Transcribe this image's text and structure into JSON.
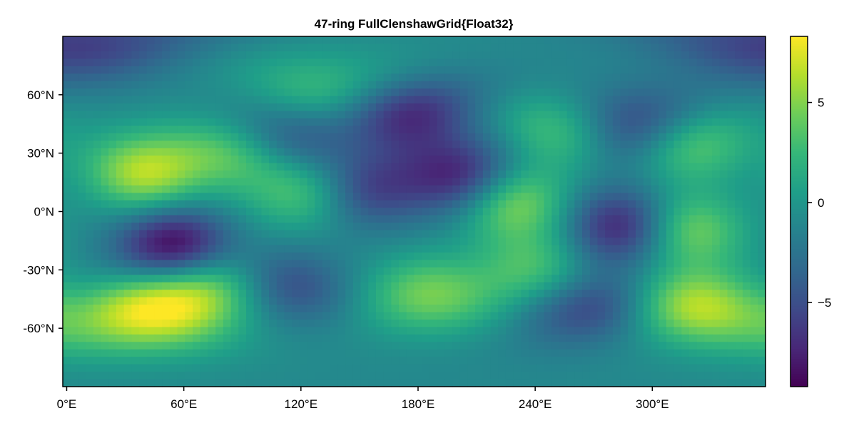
{
  "chart_data": {
    "type": "heatmap",
    "title": "47-ring FullClenshawGrid{Float32}",
    "xlabel": "",
    "ylabel": "",
    "x_ticks": [
      {
        "value": 0,
        "label": "0°E"
      },
      {
        "value": 60,
        "label": "60°E"
      },
      {
        "value": 120,
        "label": "120°E"
      },
      {
        "value": 180,
        "label": "180°E"
      },
      {
        "value": 240,
        "label": "240°E"
      },
      {
        "value": 300,
        "label": "300°E"
      }
    ],
    "y_ticks": [
      {
        "value": 60,
        "label": "60°N"
      },
      {
        "value": 30,
        "label": "30°N"
      },
      {
        "value": 0,
        "label": "0°N"
      },
      {
        "value": -30,
        "label": "-30°N"
      },
      {
        "value": -60,
        "label": "-60°N"
      }
    ],
    "xlim": [
      -2,
      358
    ],
    "ylim": [
      -90,
      90
    ],
    "n_rings": 47,
    "n_lon": 92,
    "colormap": "viridis",
    "colorbar": {
      "range": [
        -9.2,
        8.3
      ],
      "ticks": [
        {
          "value": 5,
          "label": "5"
        },
        {
          "value": 0,
          "label": "0"
        },
        {
          "value": -5,
          "label": "−5"
        }
      ]
    },
    "features": [
      {
        "lon": 40,
        "lat": 20,
        "value": 7.5
      },
      {
        "lon": 55,
        "lat": -18,
        "value": -8.5
      },
      {
        "lon": 40,
        "lat": -52,
        "value": 8.0
      },
      {
        "lon": 75,
        "lat": -40,
        "value": 7.0
      },
      {
        "lon": 137,
        "lat": 60,
        "value": 6.0
      },
      {
        "lon": 172,
        "lat": 52,
        "value": -7.0
      },
      {
        "lon": 203,
        "lat": 18,
        "value": -7.0
      },
      {
        "lon": 228,
        "lat": 5,
        "value": 6.5
      },
      {
        "lon": 322,
        "lat": -50,
        "value": 8.0
      },
      {
        "lon": 318,
        "lat": -10,
        "value": 6.0
      },
      {
        "lon": 318,
        "lat": 35,
        "value": 5.5
      },
      {
        "lon": 290,
        "lat": 45,
        "value": -7.0
      },
      {
        "lon": 285,
        "lat": -8,
        "value": -7.0
      },
      {
        "lon": 185,
        "lat": -43,
        "value": 5.5
      },
      {
        "lon": 255,
        "lat": 43,
        "value": 5.0
      },
      {
        "lon": 240,
        "lat": -30,
        "value": 4.5
      },
      {
        "lon": 120,
        "lat": 10,
        "value": 4.5
      },
      {
        "lon": 85,
        "lat": 30,
        "value": 4.5
      },
      {
        "lon": 155,
        "lat": 12,
        "value": -5.0
      },
      {
        "lon": 115,
        "lat": 40,
        "value": -5.0
      },
      {
        "lon": 270,
        "lat": -50,
        "value": -5.5
      },
      {
        "lon": 110,
        "lat": -40,
        "value": -5.0
      },
      {
        "lon": 5,
        "lat": 85,
        "value": -5.0
      }
    ]
  }
}
